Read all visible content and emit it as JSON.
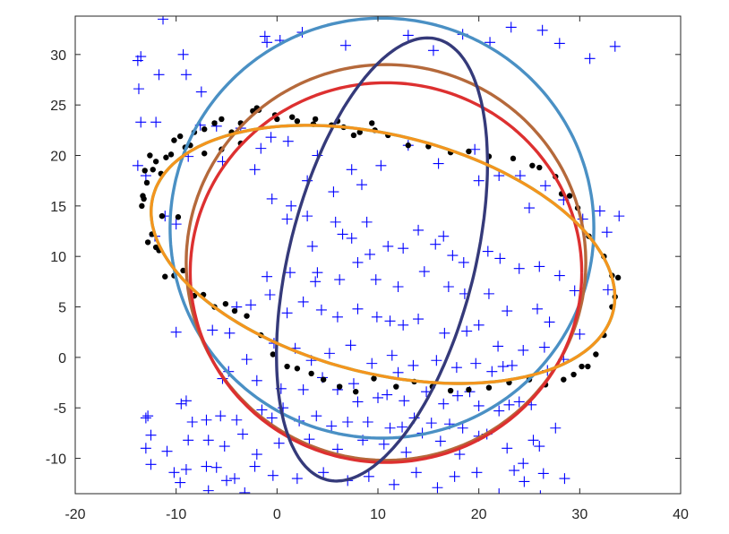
{
  "chart_data": {
    "type": "scatter",
    "title": "",
    "xlabel": "",
    "ylabel": "",
    "xlim": [
      -20,
      40
    ],
    "ylim": [
      -13.5,
      33.8
    ],
    "xticks": [
      "-20",
      "-10",
      "0",
      "10",
      "20",
      "30",
      "40"
    ],
    "yticks": [
      "-10",
      "-5",
      "0",
      "5",
      "10",
      "15",
      "20",
      "25",
      "30"
    ],
    "grid": false,
    "legend": "none",
    "colors": {
      "inliers": "#000000",
      "outliers": "#0000ff",
      "ellipse_1": "#4a90c4",
      "ellipse_2": "#b5693b",
      "ellipse_3": "#dd3030",
      "ellipse_4": "#353a7a",
      "ellipse_5": "#6fb040",
      "ellipse_6": "#f5941e"
    },
    "ellipses": [
      {
        "cx": 10.4,
        "cy": 12.8,
        "a": 21.0,
        "b": 20.8,
        "angle": 0
      },
      {
        "cx": 10.8,
        "cy": 9.4,
        "a": 19.8,
        "b": 19.6,
        "angle": 0
      },
      {
        "cx": 10.8,
        "cy": 8.4,
        "a": 19.4,
        "b": 18.8,
        "angle": 0
      },
      {
        "cx": 10.4,
        "cy": 9.7,
        "a": 22.5,
        "b": 9.2,
        "angle": 76
      },
      {
        "cx": 10.5,
        "cy": 10.2,
        "a": 23.5,
        "b": 11.8,
        "angle": -14
      },
      {
        "cx": 10.5,
        "cy": 10.2,
        "a": 23.5,
        "b": 11.8,
        "angle": -14
      }
    ],
    "inliers": {
      "x": [
        -13.3,
        -13.1,
        -12.9,
        -12.6,
        -12.3,
        -12.0,
        -11.5,
        -11.0,
        -10.2,
        -9.6,
        -8.6,
        -8.2,
        -7.2,
        -6.2,
        -5.5,
        -4.5,
        -3.6,
        -2.4,
        -1.8,
        0.0,
        1.5,
        3.6,
        6.0,
        7.6,
        9.4,
        -12.0,
        -11.1,
        -10.2,
        -9.3,
        -8.2,
        -7.3,
        -6.2,
        -5.1,
        -4.2,
        -3.0,
        -1.6,
        -0.4,
        1.0,
        2.0,
        3.4,
        4.6,
        6.2,
        7.8,
        9.6,
        11.8,
        13.6,
        15.4,
        17.2,
        19.0,
        21.0,
        23.0,
        25.0,
        26.6,
        28.4,
        29.4,
        30.2,
        30.8,
        31.6,
        32.4,
        33.2,
        33.5,
        33.8,
        33.2,
        32.4,
        30.9,
        29.8,
        29.0,
        28.2,
        27.6,
        26.0,
        25.3,
        23.4,
        21.0,
        19.0,
        17.2,
        15.0,
        13.0,
        11.0,
        9.7,
        8.2,
        6.6,
        5.4,
        3.8,
        2.0,
        -0.2,
        -2.0,
        -3.6,
        -5.5,
        -7.2,
        -9.1,
        -10.5,
        -11.4,
        -12.4,
        -13.2,
        -9.8,
        -11.7,
        -12.8,
        -13.4
      ],
      "y": [
        16.0,
        18.5,
        17.3,
        20.0,
        18.6,
        19.4,
        18.2,
        19.8,
        21.5,
        21.9,
        21.0,
        22.3,
        22.6,
        23.2,
        23.6,
        22.3,
        23.2,
        24.4,
        24.5,
        23.6,
        23.8,
        23.1,
        23.4,
        22.0,
        23.2,
        10.9,
        8.0,
        8.1,
        8.6,
        6.1,
        6.2,
        5.0,
        5.3,
        4.6,
        4.1,
        2.2,
        0.3,
        -0.9,
        -1.1,
        -1.6,
        -2.2,
        -2.9,
        -3.4,
        -2.1,
        -2.9,
        -2.4,
        -2.9,
        -3.3,
        -3.2,
        -3.0,
        -2.5,
        -2.2,
        -2.7,
        -2.2,
        -1.7,
        -0.9,
        -0.9,
        0.3,
        2.2,
        5.0,
        6.0,
        7.9,
        8.1,
        10.0,
        12.0,
        14.8,
        16.0,
        16.2,
        17.9,
        18.8,
        19.0,
        19.7,
        19.9,
        20.4,
        20.3,
        20.9,
        21.0,
        22.0,
        22.5,
        22.3,
        22.8,
        23.0,
        23.6,
        23.4,
        24.0,
        24.7,
        21.2,
        20.6,
        20.2,
        20.8,
        20.1,
        14.0,
        12.2,
        15.7,
        13.9,
        10.6,
        11.4,
        15.0
      ]
    },
    "outliers": {
      "x": [
        -11.3,
        -13.5,
        -13.8,
        -13.5,
        -11.7,
        -9.3,
        -9.0,
        -7.5,
        -12.0,
        -8.8,
        -13.7,
        -13.8,
        -13.0,
        -11.1,
        -10.0,
        -12.1,
        -10.0,
        -9.0,
        -12.8,
        -13.0,
        -10.2,
        -9.6,
        -6.8,
        -5.0,
        -3.2,
        -1.2,
        -1.0,
        0.3,
        2.5,
        6.8,
        13.0,
        15.5,
        18.4,
        21.1,
        23.2,
        26.3,
        28.0,
        31.0,
        33.5,
        -7.6,
        -6.0,
        -3.6,
        -1.6,
        -0.6,
        1.1,
        -5.4,
        -2.2,
        3.0,
        5.6,
        4.0,
        7.4,
        8.4,
        10.3,
        13.0,
        16.0,
        19.6,
        20.0,
        22.0,
        24.1,
        25.0,
        26.6,
        28.4,
        30.3,
        32.0,
        32.7,
        33.9,
        -0.5,
        1.4,
        1.0,
        3.0,
        3.5,
        5.8,
        6.5,
        7.4,
        8.9,
        9.2,
        11.0,
        12.5,
        14.0,
        15.7,
        16.5,
        17.4,
        18.5,
        20.9,
        22.1,
        24.0,
        26.0,
        28.0,
        29.5,
        32.8,
        -1.0,
        1.3,
        3.8,
        4.0,
        6.2,
        8.0,
        9.8,
        12.0,
        14.6,
        17.0,
        18.6,
        21.0,
        22.8,
        25.8,
        27.0,
        30.0,
        -4.0,
        -2.6,
        -0.7,
        1.0,
        2.6,
        4.4,
        6.0,
        8.0,
        9.9,
        11.2,
        12.5,
        14.0,
        16.6,
        18.8,
        20.0,
        21.9,
        24.4,
        26.5,
        28.4,
        -6.4,
        -4.7,
        -3.0,
        -0.3,
        1.8,
        3.4,
        5.2,
        7.3,
        9.4,
        11.4,
        12.0,
        13.5,
        15.8,
        17.8,
        19.7,
        21.3,
        22.4,
        23.3,
        26.8,
        -5.4,
        -4.8,
        -2.0,
        0.4,
        2.6,
        4.5,
        6.0,
        7.6,
        8.0,
        10.0,
        10.9,
        12.6,
        14.8,
        16.5,
        17.9,
        19.1,
        20.0,
        22.0,
        23.0,
        24.0,
        25.2,
        27.6,
        -13.0,
        -9.5,
        -8.4,
        -7.0,
        -5.6,
        -4.0,
        -1.5,
        -0.5,
        0.6,
        2.2,
        3.9,
        5.4,
        7.0,
        9.0,
        11.2,
        12.4,
        13.6,
        15.3,
        17.1,
        18.4,
        20.0,
        22.8,
        25.4,
        26.0,
        -12.5,
        -10.9,
        -8.8,
        -6.8,
        -5.2,
        -3.4,
        -2.0,
        0.2,
        3.2,
        6.0,
        8.5,
        10.6,
        12.8,
        14.4,
        16.2,
        18.1,
        20.8,
        23.5,
        24.4,
        26.4,
        28.5,
        -12.5,
        -9.0,
        -7.0,
        -6.0,
        -4.2,
        -2.2,
        -0.4,
        2.0,
        4.6,
        7.0,
        9.1,
        11.6,
        13.8,
        15.9,
        17.6,
        19.8,
        22.0,
        24.5,
        26.1
      ],
      "y": [
        33.5,
        29.8,
        29.4,
        23.3,
        28.0,
        30.0,
        28.0,
        26.3,
        23.3,
        19.9,
        26.6,
        19.0,
        18.0,
        14.0,
        13.2,
        12.0,
        2.5,
        -4.3,
        -5.8,
        -9.0,
        -11.4,
        -12.4,
        -13.2,
        -12.2,
        -13.4,
        31.8,
        31.2,
        31.4,
        32.2,
        30.9,
        31.9,
        30.4,
        32.0,
        31.2,
        32.7,
        32.4,
        31.1,
        29.6,
        30.8,
        23.0,
        22.9,
        22.7,
        20.7,
        21.8,
        21.4,
        19.4,
        18.6,
        17.5,
        16.4,
        20.0,
        18.6,
        17.1,
        19.0,
        21.0,
        19.2,
        20.6,
        17.5,
        18.0,
        18.0,
        14.8,
        17.0,
        15.6,
        13.7,
        14.5,
        12.4,
        14.0,
        15.7,
        15.0,
        13.7,
        14.0,
        11.0,
        13.4,
        12.2,
        11.8,
        13.4,
        10.2,
        11.0,
        10.8,
        12.6,
        11.2,
        12.0,
        10.1,
        9.4,
        10.5,
        9.8,
        8.8,
        9.0,
        8.1,
        6.6,
        6.7,
        8.0,
        8.4,
        7.5,
        8.4,
        7.7,
        9.4,
        7.7,
        7.0,
        8.5,
        7.0,
        6.3,
        6.3,
        4.6,
        4.8,
        3.5,
        2.3,
        5.0,
        5.2,
        6.2,
        4.4,
        5.5,
        4.7,
        4.0,
        4.8,
        4.0,
        3.6,
        3.2,
        3.8,
        2.4,
        2.6,
        3.2,
        1.1,
        0.7,
        1.0,
        -0.2,
        2.7,
        2.4,
        -0.2,
        1.4,
        0.9,
        -0.3,
        0.4,
        1.2,
        -0.6,
        0.2,
        -1.5,
        -0.8,
        -0.3,
        -1.0,
        -0.6,
        -1.4,
        -0.9,
        -0.8,
        -1.3,
        -2.1,
        -1.4,
        -2.3,
        -3.1,
        -3.2,
        -2.0,
        -3.2,
        -2.6,
        -4.4,
        -4.0,
        -3.7,
        -4.3,
        -3.4,
        -4.6,
        -3.8,
        -3.4,
        -4.8,
        -5.3,
        -4.7,
        -4.4,
        -4.7,
        -7.0,
        -6.0,
        -4.6,
        -6.4,
        -6.2,
        -5.8,
        -6.2,
        -5.2,
        -6.0,
        -5.0,
        -6.3,
        -5.8,
        -6.8,
        -6.4,
        -6.4,
        -7.0,
        -6.9,
        -6.0,
        -6.5,
        -6.6,
        -7.0,
        -7.8,
        -9.0,
        -8.2,
        -8.8,
        -7.7,
        -9.3,
        -8.2,
        -8.2,
        -8.8,
        -7.6,
        -9.6,
        -8.5,
        -8.1,
        -9.1,
        -8.2,
        -8.6,
        -9.4,
        -7.5,
        -8.3,
        -9.6,
        -7.6,
        -11.2,
        -10.5,
        -11.5,
        -12.0,
        -10.6,
        -11.1,
        -10.8,
        -10.9,
        -12.0,
        -10.8,
        -11.7,
        -12.0,
        -11.4,
        -12.2,
        -11.8,
        -12.6,
        -11.4,
        -12.9,
        -11.8,
        -11.4,
        -13.5,
        -12.3,
        -13.7
      ]
    }
  }
}
